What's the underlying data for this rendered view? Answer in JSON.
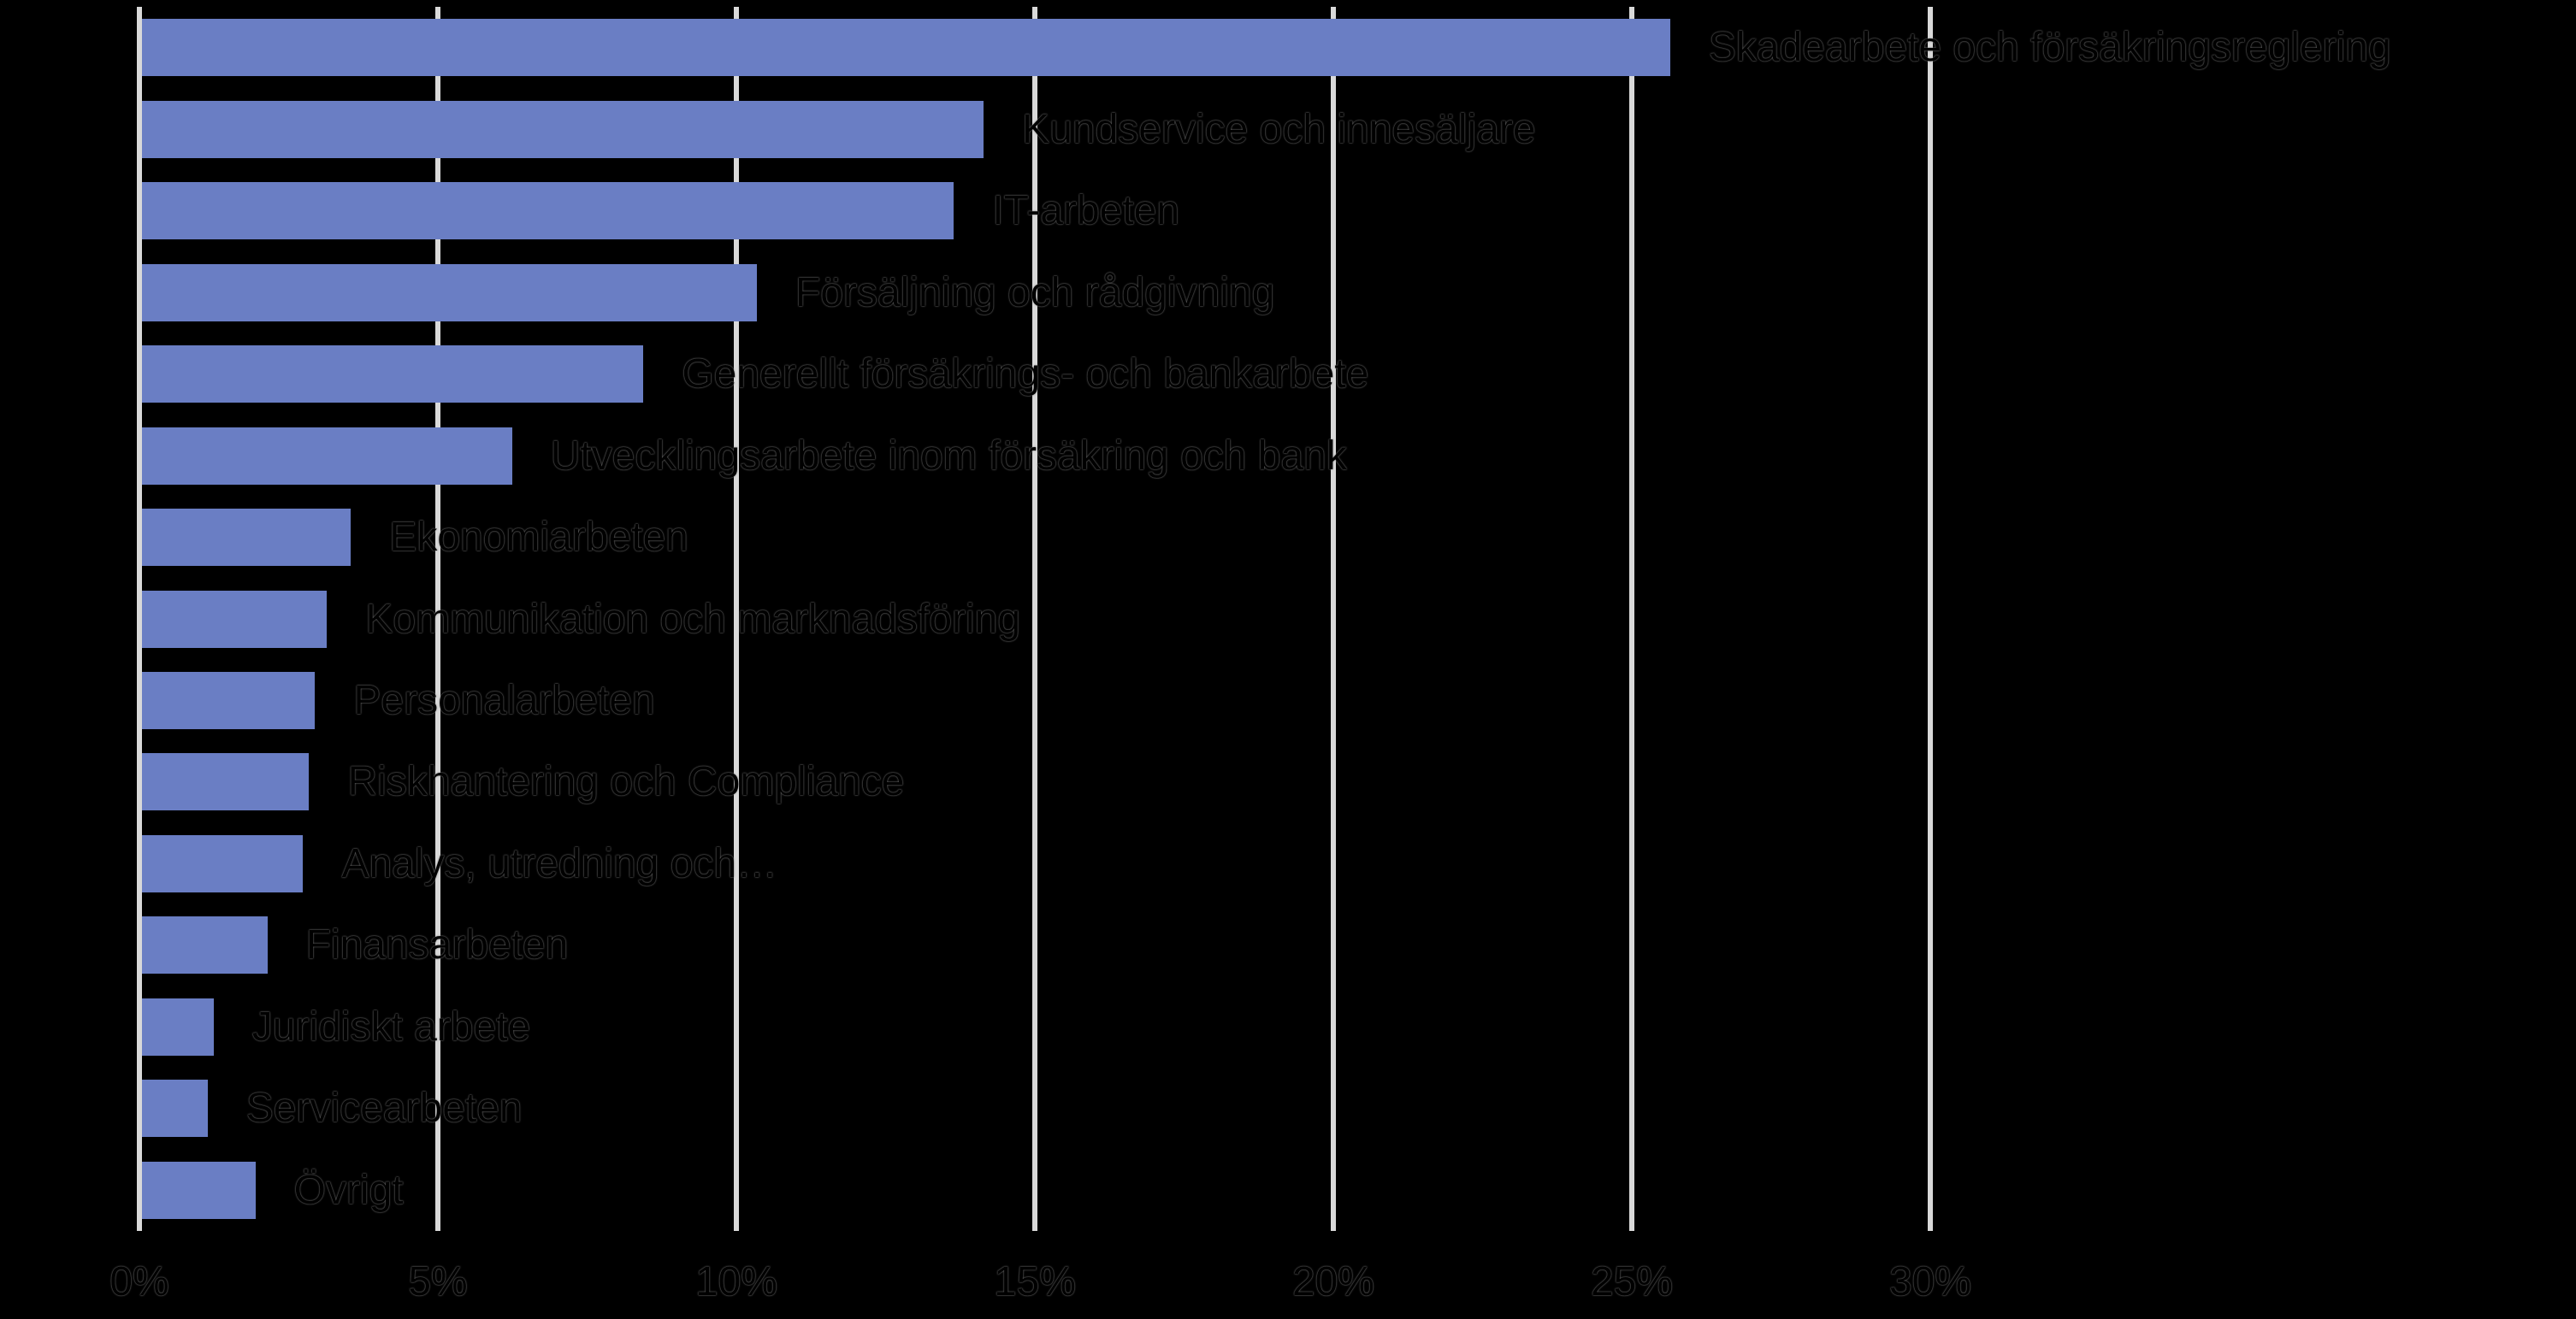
{
  "chart_data": {
    "type": "bar",
    "orientation": "horizontal",
    "title": "",
    "xlabel": "",
    "ylabel": "",
    "categories": [
      "Skadearbete och försäkringsreglering",
      "Kundservice och innesäljare",
      "IT-arbeten",
      "Försäljning och rådgivning",
      "Generellt försäkrings- och bankarbete",
      "Utvecklingsarbete inom försäkring och bank",
      "Ekonomiarbeten",
      "Kommunikation och marknadsföring",
      "Personalarbeten",
      "Riskhantering och Compliance",
      "Analys, utredning och…",
      "Finansarbeten",
      "Juridiskt arbete",
      "Servicearbeten",
      "Övrigt"
    ],
    "values": [
      25.6,
      14.1,
      13.6,
      10.3,
      8.4,
      6.2,
      3.5,
      3.1,
      2.9,
      2.8,
      2.7,
      2.1,
      1.2,
      1.1,
      1.9
    ],
    "value_unit": "%",
    "x_ticks": [
      "0%",
      "5%",
      "10%",
      "15%",
      "20%",
      "25%",
      "30%"
    ],
    "xlim": [
      0,
      30
    ],
    "grid": true,
    "legend": null,
    "colors": {
      "bar": "#6a7ec4",
      "gridline": "#d9d9d9",
      "label_text": "#000000",
      "background": "#000000"
    }
  }
}
